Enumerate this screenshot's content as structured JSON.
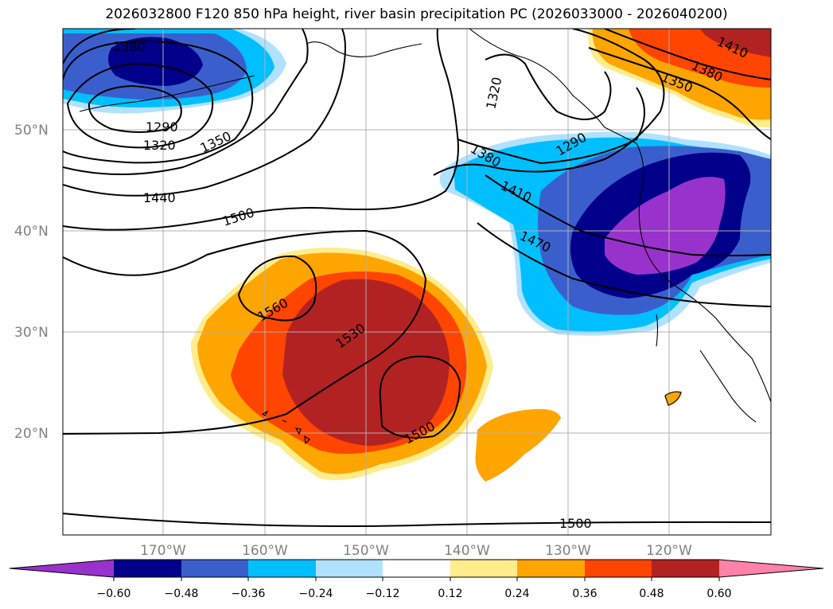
{
  "title": "2026032800 F120 850 hPa height, river basin precipitation PC (2026033000 - 2026040200)",
  "lat_labels": [
    "50°N",
    "40°N",
    "30°N",
    "20°N"
  ],
  "lon_labels": [
    "170°W",
    "160°W",
    "150°W",
    "140°W",
    "130°W",
    "120°W"
  ],
  "contour_labels": [
    "1380",
    "1290",
    "1320",
    "1350",
    "1440",
    "1500",
    "1560",
    "1530",
    "1500",
    "1320",
    "1290",
    "1380",
    "1410",
    "1470",
    "1410",
    "1380",
    "1350",
    "1500"
  ],
  "colorbar": {
    "ticks": [
      "−0.60",
      "−0.48",
      "−0.36",
      "−0.24",
      "−0.12",
      "0.12",
      "0.24",
      "0.36",
      "0.48",
      "0.60"
    ],
    "colors": {
      "lt_060": "#9932cc",
      "m060_m048": "#00008b",
      "m048_m036": "#3a5fcd",
      "m036_m024": "#00bfff",
      "m024_m012": "#b0e2ff",
      "m012_012": "#ffffff",
      "p012_p024": "#ffec8b",
      "p024_p036": "#ffa500",
      "p036_p048": "#ff4500",
      "p048_p060": "#b22222",
      "gt_060": "#ff82ab"
    }
  }
}
